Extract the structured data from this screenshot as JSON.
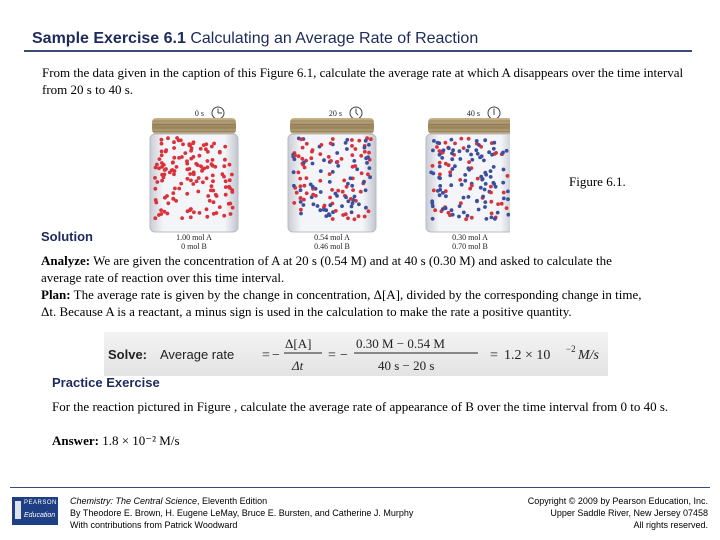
{
  "title": {
    "bold": "Sample Exercise 6.1",
    "rest": " Calculating an Average Rate of Reaction"
  },
  "intro": "From the data given in the caption of  this Figure 6.1, calculate the average rate at which A disappears over the time interval from 20 s to 40 s.",
  "figure": {
    "label": "Figure 6.1.",
    "jars": [
      {
        "time": "0 s",
        "molA": "1.00 mol A",
        "molB": "0 mol B"
      },
      {
        "time": "20 s",
        "molA": "0.54 mol A",
        "molB": "0.46 mol B"
      },
      {
        "time": "40 s",
        "molA": "0.30 mol A",
        "molB": "0.70 mol B"
      }
    ],
    "colors": {
      "A": "#d8323c",
      "B": "#3b4f9c"
    }
  },
  "solution": {
    "heading": "Solution",
    "analyze_label": "Analyze:",
    "analyze_text": " We are given the concentration of A at 20 s (0.54 M) and at 40 s (0.30 M) and asked to calculate the average rate of reaction over this time interval.",
    "plan_label": "Plan:",
    "plan_text": " The average rate is given by the change in concentration, Δ[A], divided by the corresponding change in time, Δt. Because A is a reactant, a minus sign is used in the calculation to make the rate a positive quantity.",
    "solve": {
      "label": "Solve:",
      "avg": "Average rate",
      "eq": "=",
      "minus": "−",
      "num1": "Δ[A]",
      "den1": "Δt",
      "num2": "0.30 M − 0.54 M",
      "den2": "40 s − 20 s",
      "approx": "=",
      "result": "1.2 × 10",
      "exp": "−2",
      "unit": " M/s"
    }
  },
  "practice": {
    "heading": "Practice Exercise",
    "text": "For the reaction pictured in Figure , calculate the average rate of appearance of B over the time interval from 0 to 40 s.",
    "answer_label": "Answer:",
    "answer_text": " 1.8 × 10⁻² M/s"
  },
  "footer": {
    "logo_top": "PEARSON",
    "logo_bottom": "Education",
    "book_title": "Chemistry: The Central Science",
    "edition": ", Eleventh Edition",
    "authors": "By Theodore E. Brown, H. Eugene LeMay, Bruce E. Bursten, and Catherine J. Murphy",
    "contrib": "With contributions from Patrick Woodward",
    "copyright": "Copyright © 2009 by Pearson Education, Inc.",
    "address": "Upper Saddle River, New Jersey 07458",
    "rights": "All rights reserved."
  }
}
